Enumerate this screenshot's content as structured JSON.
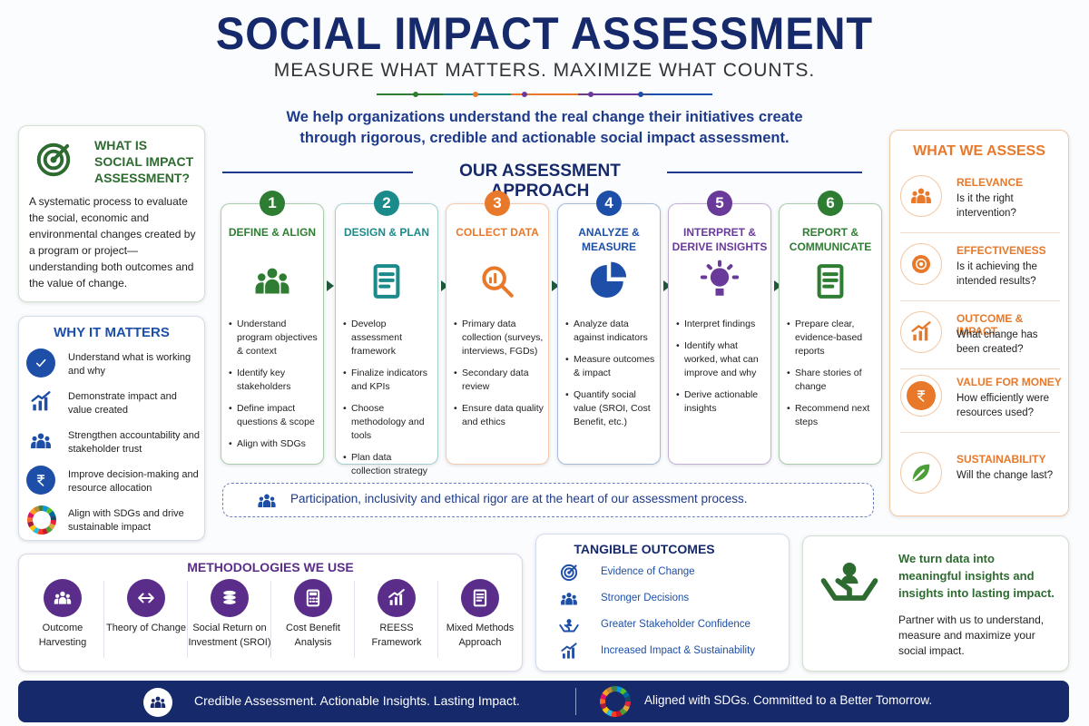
{
  "header": {
    "title": "SOCIAL IMPACT ASSESSMENT",
    "subtitle": "MEASURE WHAT MATTERS. MAXIMIZE WHAT COUNTS.",
    "intro": [
      "We help organizations understand the real change their initiatives create",
      "through rigorous, credible and actionable social impact assessment."
    ]
  },
  "what_is": {
    "title": [
      "WHAT IS",
      "SOCIAL IMPACT",
      "ASSESSMENT?"
    ],
    "description": "A systematic process to evaluate the social, economic and environmental changes created by a program or project—understanding both outcomes and the value of change."
  },
  "why_it_matters": {
    "title": "WHY IT MATTERS",
    "items": [
      "Understand what is working and why",
      "Demonstrate impact and value created",
      "Strengthen accountability and stakeholder trust",
      "Improve decision-making and resource allocation",
      "Align with SDGs and drive sustainable impact"
    ]
  },
  "approach": {
    "title": "OUR ASSESSMENT APPROACH",
    "steps": [
      {
        "number": 1,
        "title": "DEFINE & ALIGN",
        "bullets": [
          "Understand program objectives & context",
          "Identify key stakeholders",
          "Define impact questions & scope",
          "Align with SDGs"
        ]
      },
      {
        "number": 2,
        "title": "DESIGN & PLAN",
        "bullets": [
          "Develop assessment framework",
          "Finalize indicators and KPIs",
          "Choose methodology and tools",
          "Plan data collection strategy"
        ]
      },
      {
        "number": 3,
        "title": "COLLECT DATA",
        "bullets": [
          "Primary data collection (surveys, interviews, FGDs)",
          "Secondary data review",
          "Ensure data quality and ethics"
        ]
      },
      {
        "number": 4,
        "title": "ANALYZE & MEASURE",
        "bullets": [
          "Analyze data against indicators",
          "Measure outcomes & impact",
          "Quantify social value (SROI, Cost Benefit, etc.)"
        ]
      },
      {
        "number": 5,
        "title": "INTERPRET & DERIVE INSIGHTS",
        "bullets": [
          "Interpret findings",
          "Identify what worked, what can improve and why",
          "Derive actionable insights"
        ]
      },
      {
        "number": 6,
        "title": "REPORT & COMMUNICATE",
        "bullets": [
          "Prepare clear, evidence-based reports",
          "Share stories of change",
          "Recommend next steps"
        ]
      }
    ],
    "note": "Participation, inclusivity and ethical rigor are at the heart of our assessment process."
  },
  "what_we_assess": {
    "title": "WHAT WE ASSESS",
    "items": [
      {
        "title": "RELEVANCE",
        "question": "Is it the right intervention?"
      },
      {
        "title": "EFFECTIVENESS",
        "question": "Is it achieving the intended results?"
      },
      {
        "title": "OUTCOME & IMPACT",
        "question": "What change has been created?"
      },
      {
        "title": "VALUE FOR MONEY",
        "question": "How efficiently were resources used?"
      },
      {
        "title": "SUSTAINABILITY",
        "question": "Will the change last?"
      }
    ]
  },
  "methodologies": {
    "title": "METHODOLOGIES WE USE",
    "items": [
      "Outcome Harvesting",
      "Theory of Change",
      "Social Return on Investment (SROI)",
      "Cost Benefit Analysis",
      "REESS Framework",
      "Mixed Methods Approach"
    ]
  },
  "tangible_outcomes": {
    "title": "TANGIBLE OUTCOMES",
    "items": [
      "Evidence of Change",
      "Stronger Decisions",
      "Greater Stakeholder Confidence",
      "Increased Impact & Sustainability"
    ]
  },
  "cta": {
    "statement": "We turn data into meaningful insights and insights into lasting impact.",
    "invitation": "Partner with us to understand, measure and maximize your social impact."
  },
  "footer": {
    "left": "Credible Assessment. Actionable Insights. Lasting Impact.",
    "right": "Aligned with SDGs. Committed to a Better Tomorrow."
  }
}
